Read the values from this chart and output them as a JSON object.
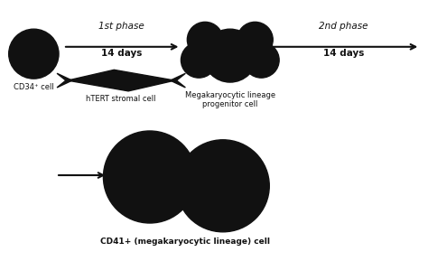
{
  "bg_color": "#ffffff",
  "cell_color": "#111111",
  "arrow_color": "#111111",
  "text_color": "#111111",
  "phase1_label": "1st phase",
  "phase1_days": "14 days",
  "phase2_label": "2nd phase",
  "phase2_days": "14 days",
  "cd34_label": "CD34⁺ cell",
  "stromal_label": "hTERT stromal cell",
  "progenitor_label": "Megakaryocytic lineage\nprogenitor cell",
  "cd41_label": "CD41+ (megakaryocytic lineage) cell",
  "figsize": [
    4.74,
    2.89
  ],
  "dpi": 100
}
